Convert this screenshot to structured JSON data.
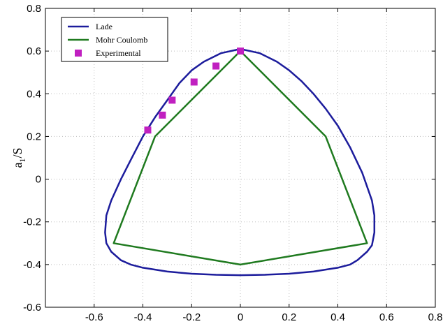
{
  "chart_data": {
    "type": "line",
    "title": "",
    "xlabel": "",
    "ylabel": "a",
    "ylabel_subscript": "1",
    "ylabel_suffix": "/S",
    "xlim": [
      -0.8,
      0.8
    ],
    "ylim": [
      -0.6,
      0.8
    ],
    "xticks": [
      -0.6,
      -0.4,
      -0.2,
      0,
      0.2,
      0.4,
      0.6,
      0.8
    ],
    "xtick_labels": [
      "-0.6",
      "-0.4",
      "-0.2",
      "0",
      "0.2",
      "0.4",
      "0.6",
      "0.8"
    ],
    "yticks": [
      -0.6,
      -0.4,
      -0.2,
      0,
      0.2,
      0.4,
      0.6,
      0.8
    ],
    "ytick_labels": [
      "-0.6",
      "-0.4",
      "-0.2",
      "0",
      "0.2",
      "0.4",
      "0.6",
      "0.8"
    ],
    "grid": true,
    "legend_position": "top-left",
    "series": [
      {
        "name": "Lade",
        "kind": "line",
        "color": "#1c1c9c",
        "x": [
          0.0,
          0.08,
          0.15,
          0.2,
          0.25,
          0.3,
          0.35,
          0.4,
          0.45,
          0.5,
          0.54,
          0.55,
          0.55,
          0.54,
          0.52,
          0.48,
          0.45,
          0.4,
          0.3,
          0.2,
          0.1,
          0.0,
          -0.1,
          -0.2,
          -0.3,
          -0.4,
          -0.45,
          -0.49,
          -0.53,
          -0.55,
          -0.555,
          -0.55,
          -0.53,
          -0.49,
          -0.45,
          -0.4,
          -0.35,
          -0.3,
          -0.25,
          -0.2,
          -0.15,
          -0.08,
          0.0
        ],
        "y": [
          0.61,
          0.59,
          0.55,
          0.51,
          0.46,
          0.4,
          0.33,
          0.25,
          0.15,
          0.03,
          -0.1,
          -0.17,
          -0.25,
          -0.31,
          -0.34,
          -0.38,
          -0.4,
          -0.415,
          -0.433,
          -0.443,
          -0.448,
          -0.45,
          -0.448,
          -0.443,
          -0.433,
          -0.415,
          -0.4,
          -0.38,
          -0.34,
          -0.3,
          -0.25,
          -0.17,
          -0.1,
          0.0,
          0.09,
          0.2,
          0.29,
          0.37,
          0.45,
          0.51,
          0.55,
          0.59,
          0.61
        ]
      },
      {
        "name": "Mohr Coulomb",
        "kind": "line",
        "color": "#1f7a1f",
        "x": [
          0.0,
          0.35,
          0.52,
          0.0,
          -0.52,
          -0.35,
          0.0
        ],
        "y": [
          0.6,
          0.2,
          -0.3,
          -0.4,
          -0.3,
          0.2,
          0.6
        ]
      },
      {
        "name": "Experimental",
        "kind": "scatter",
        "color": "#c020c0",
        "x": [
          0.0,
          -0.1,
          -0.19,
          -0.28,
          -0.32,
          -0.38
        ],
        "y": [
          0.6,
          0.53,
          0.455,
          0.37,
          0.3,
          0.23
        ]
      }
    ]
  }
}
